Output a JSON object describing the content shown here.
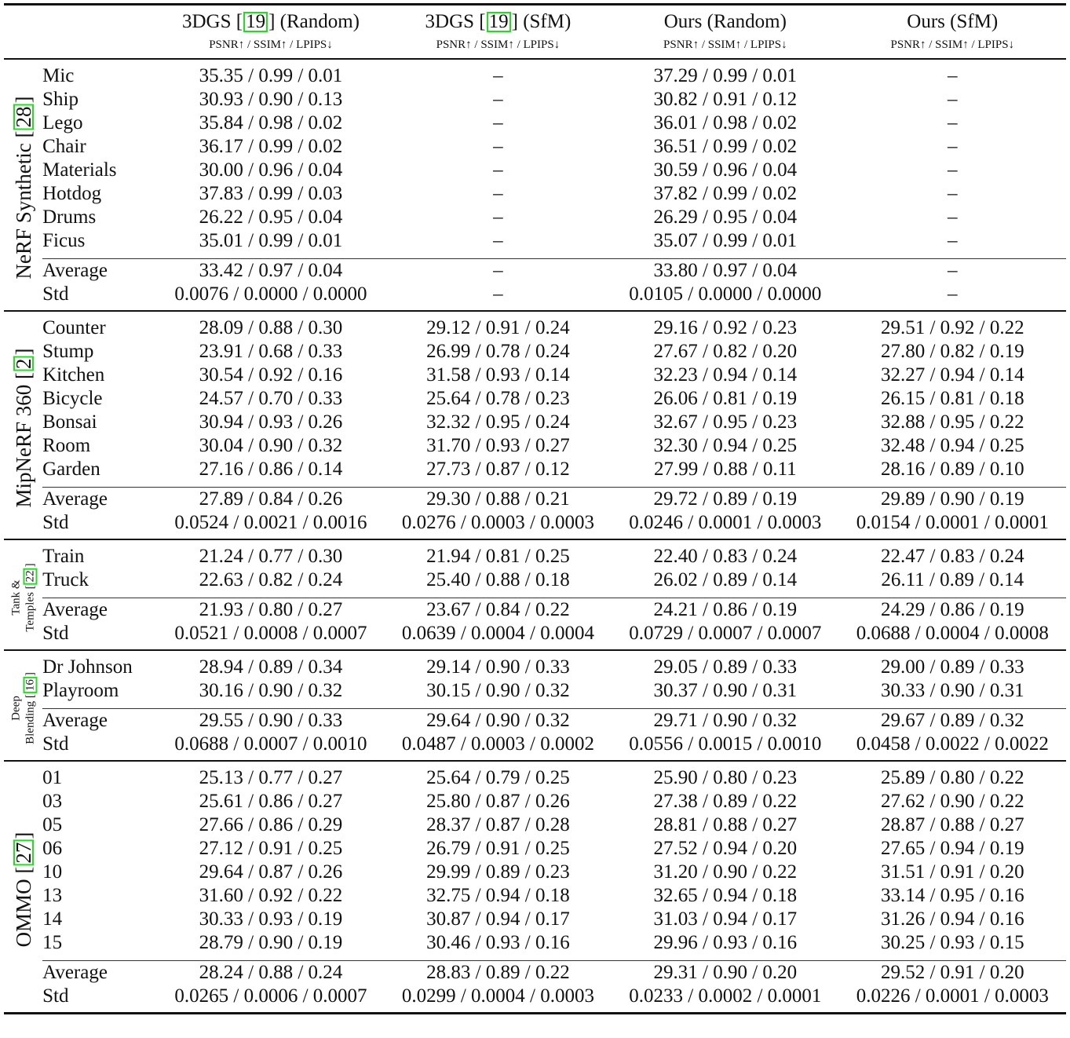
{
  "table": {
    "columns": [
      {
        "name": "3DGS",
        "cite": "19",
        "suffix": "(Random)",
        "metrics": "PSNR↑ / SSIM↑ / LPIPS↓"
      },
      {
        "name": "3DGS",
        "cite": "19",
        "suffix": "(SfM)",
        "metrics": "PSNR↑ / SSIM↑ / LPIPS↓"
      },
      {
        "name": "Ours (Random)",
        "cite": null,
        "suffix": "",
        "metrics": "PSNR↑ / SSIM↑ / LPIPS↓"
      },
      {
        "name": "Ours (SfM)",
        "cite": null,
        "suffix": "",
        "metrics": "PSNR↑ / SSIM↑ / LPIPS↓"
      }
    ],
    "cite_color": "#22dd22",
    "groups": [
      {
        "label": [
          "NeRF Synthetic"
        ],
        "cite": "28",
        "size": "big",
        "rows": [
          {
            "scene": "Mic",
            "values": [
              "35.35 / 0.99 / 0.01",
              "–",
              "37.29 / 0.99 / 0.01",
              "–"
            ]
          },
          {
            "scene": "Ship",
            "values": [
              "30.93 / 0.90 / 0.13",
              "–",
              "30.82 / 0.91 / 0.12",
              "–"
            ]
          },
          {
            "scene": "Lego",
            "values": [
              "35.84 / 0.98 / 0.02",
              "–",
              "36.01 / 0.98 / 0.02",
              "–"
            ]
          },
          {
            "scene": "Chair",
            "values": [
              "36.17 / 0.99 / 0.02",
              "–",
              "36.51 / 0.99 / 0.02",
              "–"
            ]
          },
          {
            "scene": "Materials",
            "values": [
              "30.00 / 0.96 / 0.04",
              "–",
              "30.59 / 0.96 / 0.04",
              "–"
            ]
          },
          {
            "scene": "Hotdog",
            "values": [
              "37.83 / 0.99 / 0.03",
              "–",
              "37.82 / 0.99 / 0.02",
              "–"
            ]
          },
          {
            "scene": "Drums",
            "values": [
              "26.22 / 0.95 / 0.04",
              "–",
              "26.29 / 0.95 / 0.04",
              "–"
            ]
          },
          {
            "scene": "Ficus",
            "values": [
              "35.01 / 0.99 / 0.01",
              "–",
              "35.07 / 0.99 / 0.01",
              "–"
            ]
          }
        ],
        "summary": [
          {
            "scene": "Average",
            "values": [
              "33.42 / 0.97 / 0.04",
              "–",
              "33.80 / 0.97 / 0.04",
              "–"
            ]
          },
          {
            "scene": "Std",
            "values": [
              "0.0076 / 0.0000 / 0.0000",
              "–",
              "0.0105 / 0.0000 / 0.0000",
              "–"
            ]
          }
        ]
      },
      {
        "label": [
          "MipNeRF 360"
        ],
        "cite": "2",
        "size": "big",
        "rows": [
          {
            "scene": "Counter",
            "values": [
              "28.09 / 0.88 / 0.30",
              "29.12 / 0.91 / 0.24",
              "29.16 / 0.92 / 0.23",
              "29.51 / 0.92 / 0.22"
            ]
          },
          {
            "scene": "Stump",
            "values": [
              "23.91 / 0.68 / 0.33",
              "26.99 / 0.78 / 0.24",
              "27.67 / 0.82 / 0.20",
              "27.80 / 0.82 / 0.19"
            ]
          },
          {
            "scene": "Kitchen",
            "values": [
              "30.54 / 0.92 / 0.16",
              "31.58 / 0.93 / 0.14",
              "32.23 / 0.94 / 0.14",
              "32.27 / 0.94 / 0.14"
            ]
          },
          {
            "scene": "Bicycle",
            "values": [
              "24.57 / 0.70 / 0.33",
              "25.64 / 0.78 / 0.23",
              "26.06 / 0.81 / 0.19",
              "26.15 / 0.81 / 0.18"
            ]
          },
          {
            "scene": "Bonsai",
            "values": [
              "30.94 / 0.93 / 0.26",
              "32.32 / 0.95 / 0.24",
              "32.67 / 0.95 / 0.23",
              "32.88 / 0.95 / 0.22"
            ]
          },
          {
            "scene": "Room",
            "values": [
              "30.04 / 0.90 / 0.32",
              "31.70 / 0.93 / 0.27",
              "32.30 / 0.94 / 0.25",
              "32.48 / 0.94 / 0.25"
            ]
          },
          {
            "scene": "Garden",
            "values": [
              "27.16 / 0.86 / 0.14",
              "27.73 / 0.87 / 0.12",
              "27.99 / 0.88 / 0.11",
              "28.16 / 0.89 / 0.10"
            ]
          }
        ],
        "summary": [
          {
            "scene": "Average",
            "values": [
              "27.89 / 0.84 / 0.26",
              "29.30 / 0.88 / 0.21",
              "29.72 / 0.89 / 0.19",
              "29.89 / 0.90 / 0.19"
            ]
          },
          {
            "scene": "Std",
            "values": [
              "0.0524 / 0.0021 / 0.0016",
              "0.0276 / 0.0003 / 0.0003",
              "0.0246 / 0.0001 / 0.0003",
              "0.0154 / 0.0001 / 0.0001"
            ]
          }
        ]
      },
      {
        "label": [
          "Tank &",
          "Temples"
        ],
        "cite": "22",
        "size": "small",
        "rows": [
          {
            "scene": "Train",
            "values": [
              "21.24 / 0.77 / 0.30",
              "21.94 / 0.81 / 0.25",
              "22.40 / 0.83 / 0.24",
              "22.47 / 0.83 / 0.24"
            ]
          },
          {
            "scene": "Truck",
            "values": [
              "22.63 / 0.82 / 0.24",
              "25.40 / 0.88 / 0.18",
              "26.02 / 0.89 / 0.14",
              "26.11 / 0.89 / 0.14"
            ]
          }
        ],
        "summary": [
          {
            "scene": "Average",
            "values": [
              "21.93 / 0.80 / 0.27",
              "23.67 / 0.84 / 0.22",
              "24.21 / 0.86 / 0.19",
              "24.29 / 0.86 / 0.19"
            ]
          },
          {
            "scene": "Std",
            "values": [
              "0.0521 / 0.0008 / 0.0007",
              "0.0639 / 0.0004 / 0.0004",
              "0.0729 / 0.0007 / 0.0007",
              "0.0688 / 0.0004 / 0.0008"
            ]
          }
        ]
      },
      {
        "label": [
          "Deep",
          "Blending"
        ],
        "cite": "16",
        "size": "small",
        "rows": [
          {
            "scene": "Dr Johnson",
            "values": [
              "28.94 / 0.89 / 0.34",
              "29.14 / 0.90 / 0.33",
              "29.05 / 0.89 / 0.33",
              "29.00 / 0.89 / 0.33"
            ]
          },
          {
            "scene": "Playroom",
            "values": [
              "30.16 / 0.90 / 0.32",
              "30.15 / 0.90 / 0.32",
              "30.37 / 0.90 / 0.31",
              "30.33 / 0.90 / 0.31"
            ]
          }
        ],
        "summary": [
          {
            "scene": "Average",
            "values": [
              "29.55 / 0.90 / 0.33",
              "29.64 / 0.90 / 0.32",
              "29.71 / 0.90 / 0.32",
              "29.67 / 0.89 / 0.32"
            ]
          },
          {
            "scene": "Std",
            "values": [
              "0.0688 / 0.0007 / 0.0010",
              "0.0487 / 0.0003 / 0.0002",
              "0.0556 / 0.0015 / 0.0010",
              "0.0458 / 0.0022 / 0.0022"
            ]
          }
        ]
      },
      {
        "label": [
          "OMMO"
        ],
        "cite": "27",
        "size": "big",
        "rows": [
          {
            "scene": "01",
            "values": [
              "25.13 / 0.77 / 0.27",
              "25.64 / 0.79 / 0.25",
              "25.90 / 0.80 / 0.23",
              "25.89 / 0.80 / 0.22"
            ]
          },
          {
            "scene": "03",
            "values": [
              "25.61 / 0.86 / 0.27",
              "25.80 / 0.87 / 0.26",
              "27.38 / 0.89 / 0.22",
              "27.62 / 0.90 / 0.22"
            ]
          },
          {
            "scene": "05",
            "values": [
              "27.66 / 0.86 / 0.29",
              "28.37 / 0.87 / 0.28",
              "28.81 / 0.88 / 0.27",
              "28.87 / 0.88 / 0.27"
            ]
          },
          {
            "scene": "06",
            "values": [
              "27.12 / 0.91 / 0.25",
              "26.79 / 0.91 / 0.25",
              "27.52 / 0.94 / 0.20",
              "27.65 / 0.94 / 0.19"
            ]
          },
          {
            "scene": "10",
            "values": [
              "29.64 / 0.87 / 0.26",
              "29.99 / 0.89 / 0.23",
              "31.20 / 0.90 / 0.22",
              "31.51 / 0.91 / 0.20"
            ]
          },
          {
            "scene": "13",
            "values": [
              "31.60 / 0.92 / 0.22",
              "32.75 / 0.94 / 0.18",
              "32.65 / 0.94 / 0.18",
              "33.14 / 0.95 / 0.16"
            ]
          },
          {
            "scene": "14",
            "values": [
              "30.33 / 0.93 / 0.19",
              "30.87 / 0.94 / 0.17",
              "31.03 / 0.94 / 0.17",
              "31.26 / 0.94 / 0.16"
            ]
          },
          {
            "scene": "15",
            "values": [
              "28.79 / 0.90 / 0.19",
              "30.46 / 0.93 / 0.16",
              "29.96 / 0.93 / 0.16",
              "30.25 / 0.93 / 0.15"
            ]
          }
        ],
        "summary": [
          {
            "scene": "Average",
            "values": [
              "28.24 / 0.88 / 0.24",
              "28.83 / 0.89 / 0.22",
              "29.31 / 0.90 / 0.20",
              "29.52 / 0.91 / 0.20"
            ]
          },
          {
            "scene": "Std",
            "values": [
              "0.0265 / 0.0006 / 0.0007",
              "0.0299 / 0.0004 / 0.0003",
              "0.0233 / 0.0002 / 0.0001",
              "0.0226 / 0.0001 / 0.0003"
            ]
          }
        ]
      }
    ]
  }
}
